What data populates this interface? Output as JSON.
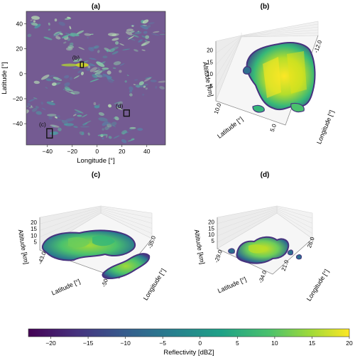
{
  "panels": {
    "a": {
      "label": "(a)",
      "xlabel": "Longitude [°]",
      "ylabel": "Latitude [°]",
      "xticks": [
        "−40",
        "−20",
        "0",
        "20",
        "40"
      ],
      "yticks": [
        "40",
        "20",
        "0",
        "−20",
        "−40"
      ],
      "boxes": [
        {
          "label": "(b)",
          "lon": [
            -13.5,
            -11.0
          ],
          "lat": [
            5.0,
            9.5
          ]
        },
        {
          "label": "(c)",
          "lon": [
            -40.5,
            -36.0
          ],
          "lat": [
            -51.5,
            -44.0
          ]
        },
        {
          "label": "(d)",
          "lon": [
            21.5,
            26.0
          ],
          "lat": [
            -34.0,
            -29.0
          ]
        }
      ]
    },
    "b": {
      "label": "(b)",
      "axes": {
        "x": "Latitude [°]",
        "y": "Longitude [°]",
        "z": "Altitude [km]"
      },
      "xticks": [
        "10.0",
        "5.0"
      ],
      "yticks": [
        "-12.0",
        "-15.0"
      ],
      "zticks": [
        "20",
        "15",
        "10",
        "5"
      ]
    },
    "c": {
      "label": "(c)",
      "axes": {
        "x": "Latitude [°]",
        "y": "Longitude [°]",
        "z": "Altitude [km]"
      },
      "xticks": [
        "-43.0",
        "-50.0"
      ],
      "yticks": [
        "-35.0",
        "-40.0"
      ],
      "zticks": [
        "20",
        "15",
        "10",
        "5"
      ]
    },
    "d": {
      "label": "(d)",
      "axes": {
        "x": "Latitude [°]",
        "y": "Longitude [°]",
        "z": "Altitude [km]"
      },
      "xticks": [
        "-29.0",
        "-34.0"
      ],
      "yticks": [
        "26.0",
        "21.0"
      ],
      "zticks": [
        "20",
        "15",
        "10",
        "5"
      ]
    }
  },
  "colorbar": {
    "label": "Reflectivity [dBZ]",
    "ticks": [
      "−20",
      "−15",
      "−10",
      "−5",
      "0",
      "5",
      "10",
      "15",
      "20"
    ],
    "range": [
      -23,
      20
    ],
    "colors": [
      "#3b1d5a",
      "#3f4d8a",
      "#2e7e8e",
      "#21a584",
      "#5ec962",
      "#b5de2b",
      "#fde725"
    ]
  },
  "chart_data": [
    {
      "type": "heatmap",
      "panel": "a",
      "xlabel": "Longitude [°]",
      "ylabel": "Latitude [°]",
      "xlim": [
        -57,
        55
      ],
      "ylim": [
        -57,
        50
      ],
      "value_label": "Reflectivity [dBZ]"
    },
    {
      "type": "scatter",
      "panel": "b",
      "xlabel": "Latitude [°]",
      "ylabel": "Longitude [°]",
      "zlabel": "Altitude [km]",
      "xlim": [
        5.0,
        10.0
      ],
      "ylim": [
        -15.0,
        -12.0
      ],
      "zlim": [
        0,
        22
      ]
    },
    {
      "type": "scatter",
      "panel": "c",
      "xlabel": "Latitude [°]",
      "ylabel": "Longitude [°]",
      "zlabel": "Altitude [km]",
      "xlim": [
        -50.0,
        -43.0
      ],
      "ylim": [
        -40.0,
        -35.0
      ],
      "zlim": [
        0,
        22
      ]
    },
    {
      "type": "scatter",
      "panel": "d",
      "xlabel": "Latitude [°]",
      "ylabel": "Longitude [°]",
      "zlabel": "Altitude [km]",
      "xlim": [
        -34.0,
        -29.0
      ],
      "ylim": [
        21.0,
        26.0
      ],
      "zlim": [
        0,
        22
      ]
    }
  ]
}
